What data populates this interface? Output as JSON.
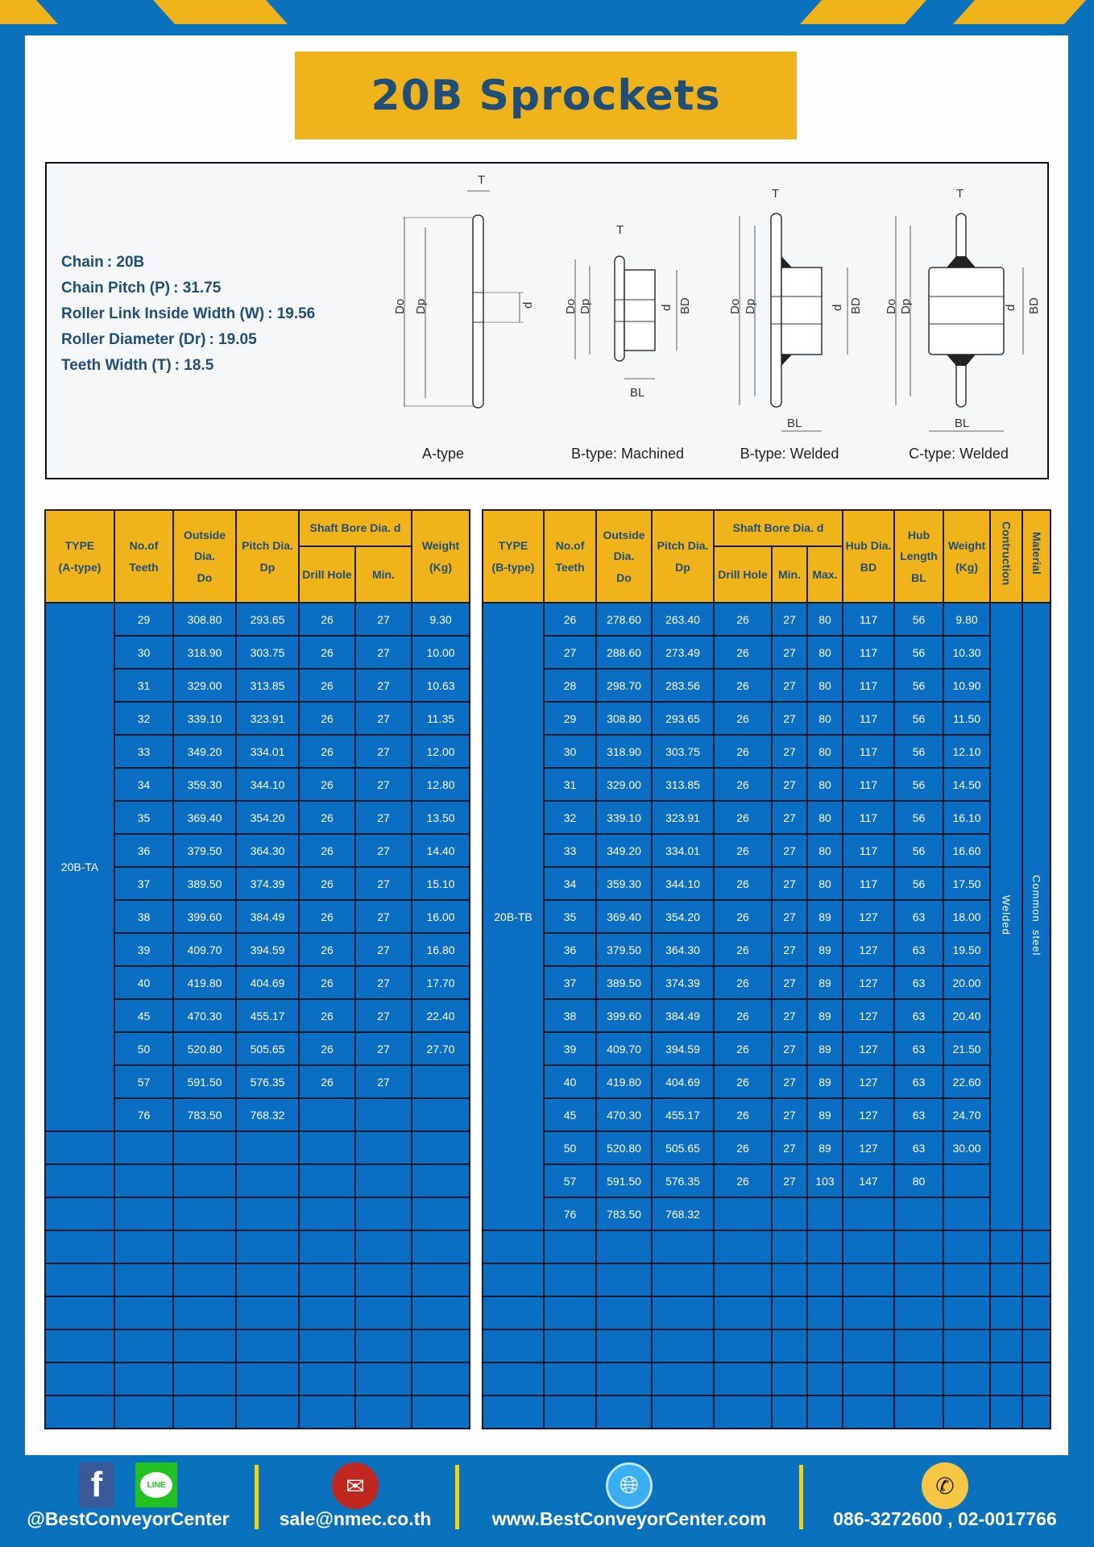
{
  "title": "20B Sprockets",
  "colors": {
    "brand_blue": "#0a72bd",
    "accent_yellow": "#f0b41a",
    "title_text": "#1f4e79"
  },
  "specs": [
    {
      "label": "Chain",
      "value": ": 20B"
    },
    {
      "label": "Chain Pitch (P)",
      "value": ": 31.75"
    },
    {
      "label": "Roller Link Inside Width (W)",
      "value": ": 19.56"
    },
    {
      "label": "Roller Diameter (Dr)",
      "value": ": 19.05"
    },
    {
      "label": "Teeth Width (T)",
      "value": ": 18.5"
    }
  ],
  "diagram": {
    "captions": [
      "A-type",
      "B-type: Machined",
      "B-type: Welded",
      "C-type: Welded"
    ],
    "labels": {
      "T": "T",
      "Do": "Do",
      "Dp": "Dp",
      "d": "d",
      "BD": "BD",
      "BL": "BL"
    }
  },
  "table_a": {
    "headers": {
      "type": [
        "TYPE",
        "(A-type)"
      ],
      "teeth": [
        "No.of",
        "Teeth"
      ],
      "outside": [
        "Outside",
        "Dia.",
        "Do"
      ],
      "pitch": [
        "Pitch Dia.",
        "Dp"
      ],
      "shaft": "Shaft Bore Dia. d",
      "drill": "Drill Hole",
      "min": "Min.",
      "weight": [
        "Weight",
        "(Kg)"
      ]
    },
    "type_value": "20B-TA",
    "rows": [
      [
        "29",
        "308.80",
        "293.65",
        "26",
        "27",
        "9.30"
      ],
      [
        "30",
        "318.90",
        "303.75",
        "26",
        "27",
        "10.00"
      ],
      [
        "31",
        "329.00",
        "313.85",
        "26",
        "27",
        "10.63"
      ],
      [
        "32",
        "339.10",
        "323.91",
        "26",
        "27",
        "11.35"
      ],
      [
        "33",
        "349.20",
        "334.01",
        "26",
        "27",
        "12.00"
      ],
      [
        "34",
        "359.30",
        "344.10",
        "26",
        "27",
        "12.80"
      ],
      [
        "35",
        "369.40",
        "354.20",
        "26",
        "27",
        "13.50"
      ],
      [
        "36",
        "379.50",
        "364.30",
        "26",
        "27",
        "14.40"
      ],
      [
        "37",
        "389.50",
        "374.39",
        "26",
        "27",
        "15.10"
      ],
      [
        "38",
        "399.60",
        "384.49",
        "26",
        "27",
        "16.00"
      ],
      [
        "39",
        "409.70",
        "394.59",
        "26",
        "27",
        "16.80"
      ],
      [
        "40",
        "419.80",
        "404.69",
        "26",
        "27",
        "17.70"
      ],
      [
        "45",
        "470.30",
        "455.17",
        "26",
        "27",
        "22.40"
      ],
      [
        "50",
        "520.80",
        "505.65",
        "26",
        "27",
        "27.70"
      ],
      [
        "57",
        "591.50",
        "576.35",
        "26",
        "27",
        ""
      ],
      [
        "76",
        "783.50",
        "768.32",
        "",
        "",
        ""
      ]
    ]
  },
  "table_b": {
    "headers": {
      "type": [
        "TYPE",
        "(B-type)"
      ],
      "teeth": [
        "No.of",
        "Teeth"
      ],
      "outside": [
        "Outside",
        "Dia.",
        "Do"
      ],
      "pitch": [
        "Pitch Dia.",
        "Dp"
      ],
      "shaft": "Shaft Bore Dia. d",
      "drill": "Drill Hole",
      "min": "Min.",
      "max": "Max.",
      "hub_dia": [
        "Hub Dia.",
        "BD"
      ],
      "hub_len": [
        "Hub",
        "Length",
        "BL"
      ],
      "weight": [
        "Weight",
        "(Kg)"
      ],
      "construction": "Contruction",
      "material": "Material"
    },
    "type_value": "20B-TB",
    "construction_value": "Welded",
    "material_value": "Common  steel",
    "rows": [
      [
        "26",
        "278.60",
        "263.40",
        "26",
        "27",
        "80",
        "117",
        "56",
        "9.80"
      ],
      [
        "27",
        "288.60",
        "273.49",
        "26",
        "27",
        "80",
        "117",
        "56",
        "10.30"
      ],
      [
        "28",
        "298.70",
        "283.56",
        "26",
        "27",
        "80",
        "117",
        "56",
        "10.90"
      ],
      [
        "29",
        "308.80",
        "293.65",
        "26",
        "27",
        "80",
        "117",
        "56",
        "11.50"
      ],
      [
        "30",
        "318.90",
        "303.75",
        "26",
        "27",
        "80",
        "117",
        "56",
        "12.10"
      ],
      [
        "31",
        "329.00",
        "313.85",
        "26",
        "27",
        "80",
        "117",
        "56",
        "14.50"
      ],
      [
        "32",
        "339.10",
        "323.91",
        "26",
        "27",
        "80",
        "117",
        "56",
        "16.10"
      ],
      [
        "33",
        "349.20",
        "334.01",
        "26",
        "27",
        "80",
        "117",
        "56",
        "16.60"
      ],
      [
        "34",
        "359.30",
        "344.10",
        "26",
        "27",
        "80",
        "117",
        "56",
        "17.50"
      ],
      [
        "35",
        "369.40",
        "354.20",
        "26",
        "27",
        "89",
        "127",
        "63",
        "18.00"
      ],
      [
        "36",
        "379.50",
        "364.30",
        "26",
        "27",
        "89",
        "127",
        "63",
        "19.50"
      ],
      [
        "37",
        "389.50",
        "374.39",
        "26",
        "27",
        "89",
        "127",
        "63",
        "20.00"
      ],
      [
        "38",
        "399.60",
        "384.49",
        "26",
        "27",
        "89",
        "127",
        "63",
        "20.40"
      ],
      [
        "39",
        "409.70",
        "394.59",
        "26",
        "27",
        "89",
        "127",
        "63",
        "21.50"
      ],
      [
        "40",
        "419.80",
        "404.69",
        "26",
        "27",
        "89",
        "127",
        "63",
        "22.60"
      ],
      [
        "45",
        "470.30",
        "455.17",
        "26",
        "27",
        "89",
        "127",
        "63",
        "24.70"
      ],
      [
        "50",
        "520.80",
        "505.65",
        "26",
        "27",
        "89",
        "127",
        "63",
        "30.00"
      ],
      [
        "57",
        "591.50",
        "576.35",
        "26",
        "27",
        "103",
        "147",
        "80",
        ""
      ],
      [
        "76",
        "783.50",
        "768.32",
        "",
        "",
        "",
        "",
        "",
        ""
      ]
    ]
  },
  "footer": {
    "social": "@BestConveyorCenter",
    "line_badge": "LINE",
    "email": "sale@nmec.co.th",
    "website": "www.BestConveyorCenter.com",
    "phone": "086-3272600 , 02-0017766",
    "icons": [
      "facebook-icon",
      "line-icon",
      "email-icon",
      "globe-icon",
      "phone-icon"
    ]
  }
}
